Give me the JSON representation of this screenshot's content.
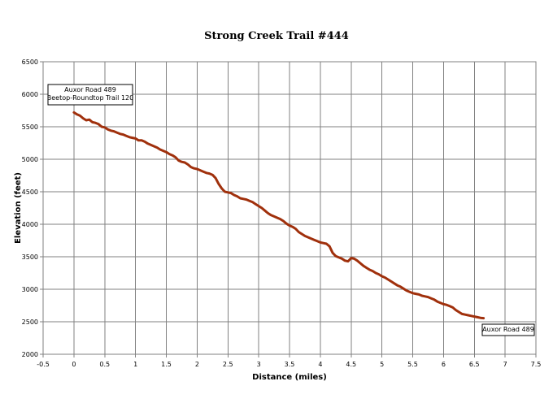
{
  "chart_data": {
    "type": "line",
    "title": "Strong Creek Trail #444",
    "xlabel": "Distance (miles)",
    "ylabel": "Elevation (feet)",
    "xlim": [
      -0.5,
      7.5
    ],
    "ylim": [
      2000,
      6500
    ],
    "xticks": [
      "-0.5",
      "0",
      "0.5",
      "1",
      "1.5",
      "2",
      "2.5",
      "3",
      "3.5",
      "4",
      "4.5",
      "5",
      "5.5",
      "6",
      "6.5",
      "7",
      "7.5"
    ],
    "yticks": [
      "2000",
      "2500",
      "3000",
      "3500",
      "4000",
      "4500",
      "5000",
      "5500",
      "6000",
      "6500"
    ],
    "grid": true,
    "series": [
      {
        "color": "#a0300c",
        "x": [
          0,
          0.05,
          0.1,
          0.15,
          0.2,
          0.25,
          0.3,
          0.35,
          0.4,
          0.45,
          0.5,
          0.55,
          0.6,
          0.65,
          0.7,
          0.75,
          0.8,
          0.85,
          0.9,
          0.95,
          1.0,
          1.05,
          1.1,
          1.15,
          1.2,
          1.25,
          1.3,
          1.35,
          1.4,
          1.45,
          1.5,
          1.55,
          1.6,
          1.65,
          1.7,
          1.75,
          1.8,
          1.85,
          1.9,
          1.95,
          2.0,
          2.05,
          2.1,
          2.15,
          2.2,
          2.25,
          2.3,
          2.35,
          2.4,
          2.45,
          2.5,
          2.55,
          2.6,
          2.65,
          2.7,
          2.75,
          2.8,
          2.85,
          2.9,
          2.95,
          3.0,
          3.05,
          3.1,
          3.15,
          3.2,
          3.25,
          3.3,
          3.35,
          3.4,
          3.45,
          3.5,
          3.55,
          3.6,
          3.65,
          3.7,
          3.75,
          3.8,
          3.85,
          3.9,
          3.95,
          4.0,
          4.05,
          4.1,
          4.15,
          4.2,
          4.25,
          4.3,
          4.35,
          4.4,
          4.45,
          4.5,
          4.55,
          4.6,
          4.65,
          4.7,
          4.75,
          4.8,
          4.85,
          4.9,
          4.95,
          5.0,
          5.05,
          5.1,
          5.15,
          5.2,
          5.25,
          5.3,
          5.35,
          5.4,
          5.45,
          5.5,
          5.55,
          5.6,
          5.65,
          5.7,
          5.75,
          5.8,
          5.85,
          5.9,
          5.95,
          6.0,
          6.05,
          6.1,
          6.15,
          6.2,
          6.25,
          6.3,
          6.35,
          6.4,
          6.45,
          6.5,
          6.55,
          6.6,
          6.65
        ],
        "y": [
          5720,
          5690,
          5670,
          5630,
          5600,
          5610,
          5570,
          5560,
          5540,
          5500,
          5490,
          5460,
          5440,
          5430,
          5410,
          5390,
          5380,
          5360,
          5340,
          5330,
          5320,
          5290,
          5290,
          5270,
          5240,
          5220,
          5200,
          5180,
          5150,
          5130,
          5110,
          5080,
          5060,
          5030,
          4980,
          4960,
          4950,
          4920,
          4880,
          4860,
          4850,
          4830,
          4810,
          4790,
          4780,
          4760,
          4710,
          4620,
          4550,
          4500,
          4490,
          4480,
          4450,
          4430,
          4400,
          4390,
          4380,
          4360,
          4340,
          4310,
          4280,
          4250,
          4210,
          4170,
          4140,
          4120,
          4100,
          4080,
          4050,
          4010,
          3980,
          3960,
          3930,
          3880,
          3850,
          3820,
          3800,
          3780,
          3760,
          3740,
          3720,
          3710,
          3700,
          3660,
          3560,
          3510,
          3490,
          3470,
          3440,
          3430,
          3480,
          3470,
          3440,
          3400,
          3360,
          3330,
          3300,
          3280,
          3250,
          3230,
          3200,
          3180,
          3150,
          3120,
          3090,
          3060,
          3040,
          3010,
          2980,
          2960,
          2940,
          2930,
          2920,
          2900,
          2890,
          2880,
          2860,
          2840,
          2810,
          2790,
          2770,
          2760,
          2740,
          2720,
          2680,
          2650,
          2620,
          2610,
          2600,
          2590,
          2580,
          2570,
          2560,
          2555
        ]
      }
    ],
    "annotations": [
      {
        "lines": [
          "Auxor Road 489",
          "Beetop-Roundtop Trail 120"
        ]
      },
      {
        "lines": [
          "Auxor Road 489"
        ]
      }
    ]
  }
}
